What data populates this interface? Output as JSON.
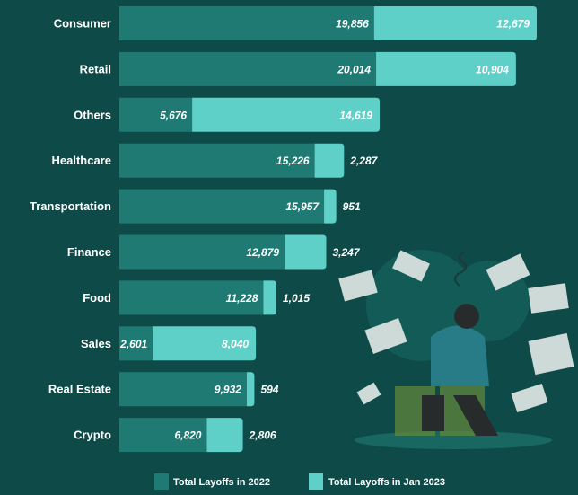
{
  "colors": {
    "background": "#0e4a47",
    "series_2022": "#1f7a74",
    "series_jan2023": "#5fd0c8",
    "illustration": "#145c57"
  },
  "chart_data": {
    "type": "bar",
    "orientation": "horizontal",
    "stacked": true,
    "categories": [
      "Consumer",
      "Retail",
      "Others",
      "Healthcare",
      "Transportation",
      "Finance",
      "Food",
      "Sales",
      "Real Estate",
      "Crypto"
    ],
    "series": [
      {
        "name": "Total Layoffs in 2022",
        "values": [
          19856,
          20014,
          5676,
          15226,
          15957,
          12879,
          11228,
          2601,
          9932,
          6820
        ],
        "labels": [
          "19,856",
          "20,014",
          "5,676",
          "15,226",
          "15,957",
          "12,879",
          "11,228",
          "2,601",
          "9,932",
          "6,820"
        ]
      },
      {
        "name": "Total Layoffs in Jan 2023",
        "values": [
          12679,
          10904,
          14619,
          2287,
          951,
          3247,
          1015,
          8040,
          594,
          2806
        ],
        "labels": [
          "12,679",
          "10,904",
          "14,619",
          "2,287",
          "951",
          "3,247",
          "1,015",
          "8,040",
          "594",
          "2,806"
        ]
      }
    ],
    "xlim": [
      0,
      32535
    ],
    "legend_position": "bottom",
    "grid": false
  }
}
